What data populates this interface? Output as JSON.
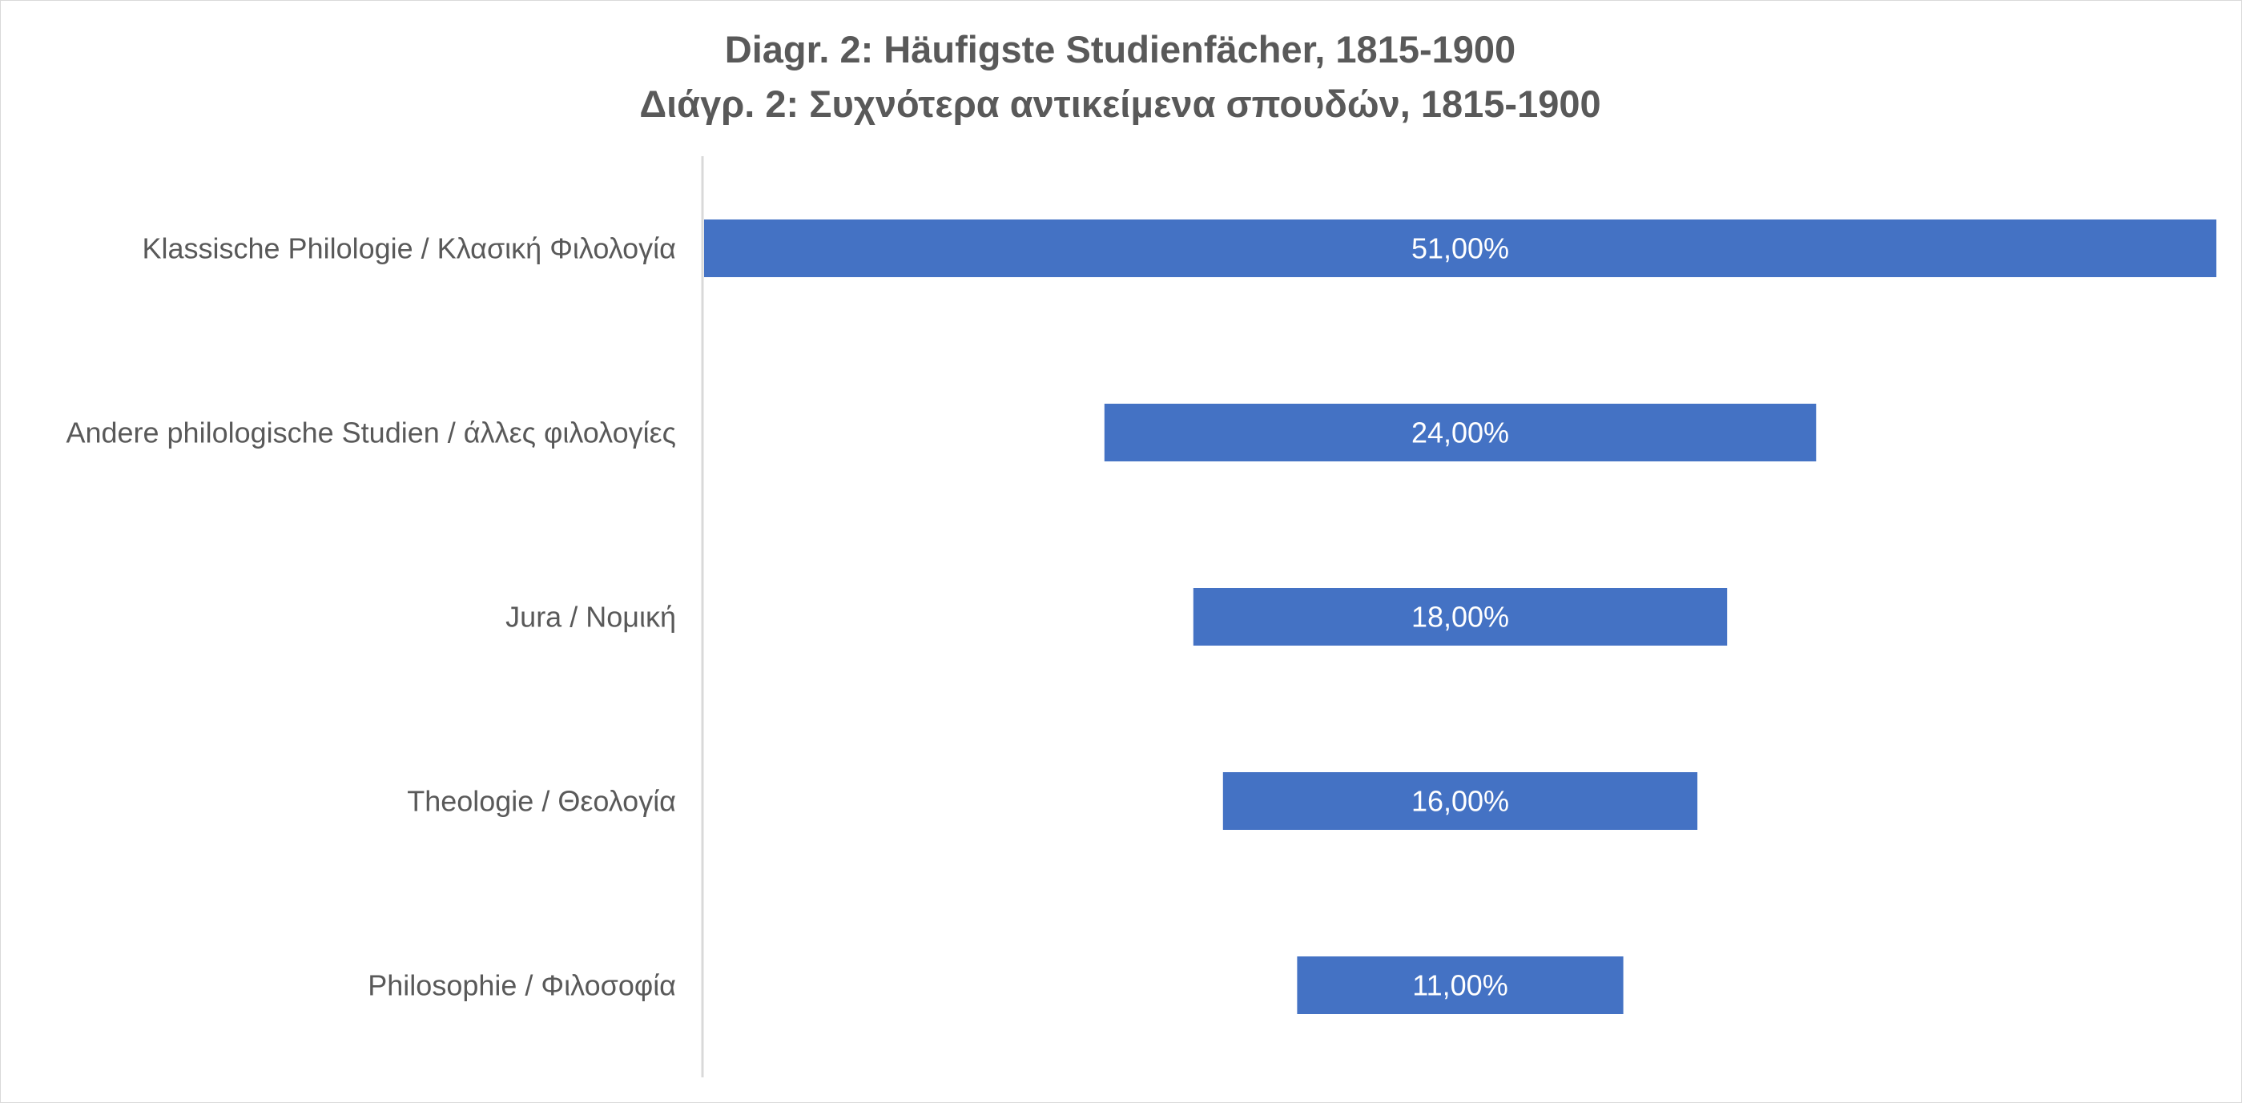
{
  "chart_data": {
    "type": "bar",
    "orientation": "horizontal",
    "style": "funnel",
    "title": "Diagr. 2: Häufigste Studienfächer, 1815-1900",
    "subtitle": "Διάγρ. 2: Συχνότερα αντικείμενα σπουδών, 1815-1900",
    "categories": [
      "Klassische Philologie / Κλασική Φιλολογία",
      "Andere philologische Studien / άλλες φιλολογίες",
      "Jura / Νομική",
      "Theologie / Θεολογία",
      "Philosophie / Φιλοσοφία"
    ],
    "values": [
      51,
      24,
      18,
      16,
      11
    ],
    "value_labels": [
      "51,00%",
      "24,00%",
      "18,00%",
      "16,00%",
      "11,00%"
    ],
    "xlim": [
      0,
      51
    ],
    "grid": false,
    "legend": "none",
    "bar_color": "#4472C4",
    "label_color": "#595959",
    "axis_color": "#d9d9d9"
  }
}
